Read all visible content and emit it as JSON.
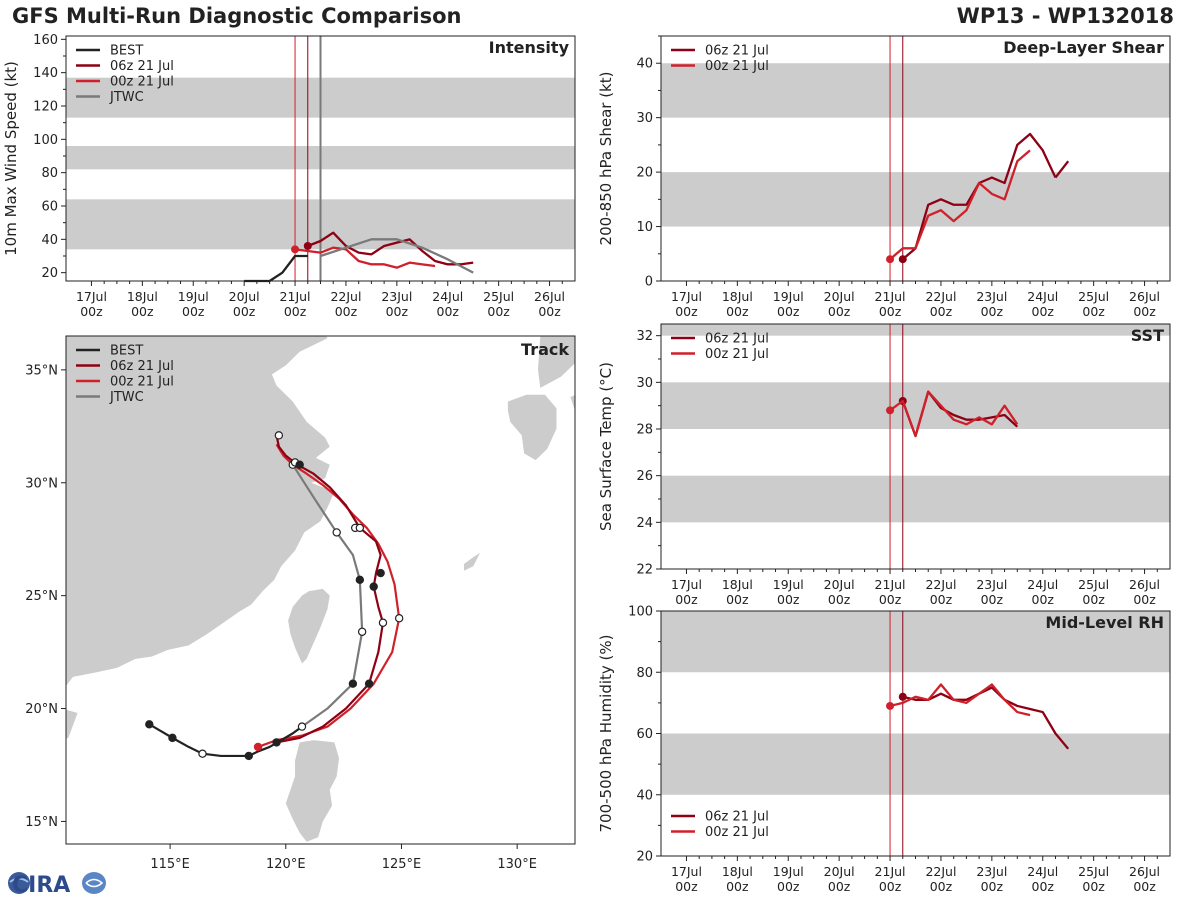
{
  "header": {
    "left_title": "GFS Multi-Run Diagnostic Comparison",
    "right_title": "WP13 - WP132018"
  },
  "logo_text": "CIRA",
  "colors": {
    "best": "#222222",
    "run06": "#8e0014",
    "run00": "#d0202a",
    "jtwc": "#7a7a7a",
    "band": "#cccccc",
    "land": "#cccccc"
  },
  "time_ticks": [
    "17Jul 00z",
    "18Jul 00z",
    "19Jul 00z",
    "20Jul 00z",
    "21Jul 00z",
    "22Jul 00z",
    "23Jul 00z",
    "24Jul 00z",
    "25Jul 00z",
    "26Jul 00z"
  ],
  "chart_data": [
    {
      "id": "intensity",
      "type": "line",
      "title": "Intensity",
      "ylabel": "10m Max Wind Speed (kt)",
      "xlim": [
        -0.5,
        9.5
      ],
      "ylim": [
        15,
        162
      ],
      "yticks": [
        20,
        40,
        60,
        80,
        100,
        120,
        140,
        160
      ],
      "bands": [
        [
          34,
          64
        ],
        [
          82,
          96
        ],
        [
          113,
          137
        ]
      ],
      "vlines": [
        4.0,
        4.25,
        4.5
      ],
      "legend": [
        "BEST",
        "06z 21 Jul",
        "00z 21 Jul",
        "JTWC"
      ],
      "series": [
        {
          "name": "BEST",
          "color_key": "best",
          "x": [
            3.0,
            3.25,
            3.5,
            3.75,
            4.0,
            4.25
          ],
          "y": [
            15,
            15,
            15,
            20,
            30,
            30
          ],
          "markers": []
        },
        {
          "name": "06z 21 Jul",
          "color_key": "run06",
          "x": [
            4.25,
            4.5,
            4.75,
            5.0,
            5.25,
            5.5,
            5.75,
            6.0,
            6.25,
            6.5,
            6.75,
            7.0,
            7.25,
            7.5
          ],
          "y": [
            36,
            39,
            44,
            36,
            32,
            31,
            36,
            38,
            40,
            33,
            27,
            25,
            25,
            26
          ],
          "markers": [
            4.25
          ]
        },
        {
          "name": "00z 21 Jul",
          "color_key": "run00",
          "x": [
            4.0,
            4.25,
            4.5,
            4.75,
            5.0,
            5.25,
            5.5,
            5.75,
            6.0,
            6.25,
            6.5,
            6.75
          ],
          "y": [
            34,
            33,
            32,
            35,
            34,
            27,
            25,
            25,
            23,
            26,
            25,
            24
          ],
          "markers": [
            4.0
          ]
        },
        {
          "name": "JTWC",
          "color_key": "jtwc",
          "x": [
            4.5,
            5.0,
            5.5,
            6.0,
            6.5,
            7.0,
            7.5
          ],
          "y": [
            30,
            35,
            40,
            40,
            35,
            28,
            20
          ],
          "markers": []
        }
      ]
    },
    {
      "id": "shear",
      "type": "line",
      "title": "Deep-Layer Shear",
      "ylabel": "200-850 hPa Shear (kt)",
      "xlim": [
        -0.5,
        9.5
      ],
      "ylim": [
        0,
        45
      ],
      "yticks": [
        0,
        10,
        20,
        30,
        40
      ],
      "bands": [
        [
          10,
          20
        ],
        [
          30,
          40
        ]
      ],
      "vlines": [
        4.0,
        4.25
      ],
      "legend": [
        "06z 21 Jul",
        "00z 21 Jul"
      ],
      "series": [
        {
          "name": "06z 21 Jul",
          "color_key": "run06",
          "x": [
            4.25,
            4.5,
            4.75,
            5.0,
            5.25,
            5.5,
            5.75,
            6.0,
            6.25,
            6.5,
            6.75,
            7.0,
            7.25
          ],
          "y": [
            4,
            6,
            14,
            15,
            14,
            14,
            18,
            19,
            18,
            25,
            27,
            24,
            19
          ],
          "markers": [
            4.25
          ]
        },
        {
          "name": "00z 21 Jul",
          "color_key": "run00",
          "x": [
            4.0,
            4.25,
            4.5,
            4.75,
            5.0,
            5.25,
            5.5,
            5.75,
            6.0,
            6.25,
            6.5,
            6.75
          ],
          "y": [
            4,
            6,
            6,
            12,
            13,
            11,
            13,
            18,
            16,
            15,
            22,
            24
          ],
          "markers": [
            4.0
          ]
        },
        {
          "name": "06z tail",
          "color_key": "run06",
          "x": [
            7.25,
            7.5
          ],
          "y": [
            19,
            22
          ],
          "markers": []
        }
      ]
    },
    {
      "id": "sst",
      "type": "line",
      "title": "SST",
      "ylabel": "Sea Surface Temp (°C)",
      "xlim": [
        -0.5,
        9.5
      ],
      "ylim": [
        22,
        32.5
      ],
      "yticks": [
        22,
        24,
        26,
        28,
        30,
        32
      ],
      "bands": [
        [
          24,
          26
        ],
        [
          28,
          30
        ],
        [
          32,
          32.5
        ]
      ],
      "vlines": [
        4.0,
        4.25
      ],
      "legend": [
        "06z 21 Jul",
        "00z 21 Jul"
      ],
      "series": [
        {
          "name": "06z 21 Jul",
          "color_key": "run06",
          "x": [
            4.25,
            4.5,
            4.75,
            5.0,
            5.25,
            5.5,
            5.75,
            6.0,
            6.25,
            6.5
          ],
          "y": [
            29.2,
            27.7,
            29.6,
            28.9,
            28.6,
            28.4,
            28.4,
            28.5,
            28.6,
            28.1
          ],
          "markers": [
            4.25
          ]
        },
        {
          "name": "00z 21 Jul",
          "color_key": "run00",
          "x": [
            4.0,
            4.25,
            4.5,
            4.75,
            5.0,
            5.25,
            5.5,
            5.75,
            6.0,
            6.25,
            6.5
          ],
          "y": [
            28.8,
            29.2,
            27.7,
            29.6,
            29.0,
            28.4,
            28.2,
            28.5,
            28.2,
            29.0,
            28.2
          ],
          "markers": [
            4.0
          ]
        }
      ]
    },
    {
      "id": "rh",
      "type": "line",
      "title": "Mid-Level RH",
      "ylabel": "700-500 hPa Humidity (%)",
      "xlim": [
        -0.5,
        9.5
      ],
      "ylim": [
        20,
        100
      ],
      "yticks": [
        20,
        40,
        60,
        80,
        100
      ],
      "bands": [
        [
          40,
          60
        ],
        [
          80,
          100
        ]
      ],
      "vlines": [
        4.0,
        4.25
      ],
      "legend": [
        "06z 21 Jul",
        "00z 21 Jul"
      ],
      "series": [
        {
          "name": "06z 21 Jul",
          "color_key": "run06",
          "x": [
            4.25,
            4.5,
            4.75,
            5.0,
            5.25,
            5.5,
            5.75,
            6.0,
            6.25,
            6.5,
            6.75,
            7.0,
            7.25,
            7.5
          ],
          "y": [
            72,
            71,
            71,
            73,
            71,
            71,
            73,
            75,
            71,
            69,
            68,
            67,
            60,
            55
          ],
          "markers": [
            4.25
          ]
        },
        {
          "name": "00z 21 Jul",
          "color_key": "run00",
          "x": [
            4.0,
            4.25,
            4.5,
            4.75,
            5.0,
            5.25,
            5.5,
            5.75,
            6.0,
            6.25,
            6.5,
            6.75
          ],
          "y": [
            69,
            70,
            72,
            71,
            76,
            71,
            70,
            73,
            76,
            71,
            67,
            66
          ],
          "markers": [
            4.0
          ]
        }
      ]
    },
    {
      "id": "track",
      "type": "scatter",
      "title": "Track",
      "xlim": [
        110.5,
        132.5
      ],
      "ylim": [
        14,
        36.5
      ],
      "xticks": [
        115,
        120,
        125,
        130
      ],
      "yticks": [
        15,
        20,
        25,
        30,
        35
      ],
      "xticklabels": [
        "115°E",
        "120°E",
        "125°E",
        "130°E"
      ],
      "yticklabels": [
        "15°N",
        "20°N",
        "25°N",
        "30°N",
        "35°N"
      ],
      "legend": [
        "BEST",
        "06z 21 Jul",
        "00z 21 Jul",
        "JTWC"
      ],
      "series": [
        {
          "name": "BEST",
          "color_key": "best",
          "lon": [
            114.1,
            114.6,
            115.1,
            115.8,
            116.4,
            117.2,
            117.9,
            118.4,
            118.8,
            119.3,
            119.8,
            120.3,
            120.7
          ],
          "lat": [
            19.3,
            19.0,
            18.7,
            18.3,
            18.0,
            17.9,
            17.9,
            17.9,
            18.1,
            18.3,
            18.6,
            18.9,
            19.2
          ],
          "dots": [
            [
              114.1,
              19.3,
              "f"
            ],
            [
              115.1,
              18.7,
              "f"
            ],
            [
              116.4,
              18.0,
              "o"
            ],
            [
              118.4,
              17.9,
              "f"
            ],
            [
              120.7,
              19.2,
              "o"
            ]
          ]
        },
        {
          "name": "06z 21 Jul",
          "color_key": "run06",
          "lon": [
            119.6,
            120.6,
            121.6,
            122.6,
            123.6,
            124.0,
            124.2,
            124.0,
            123.8,
            123.9,
            124.1,
            123.9,
            123.2,
            122.6,
            121.9,
            121.2,
            120.5,
            120.0,
            119.7,
            119.6
          ],
          "lat": [
            18.5,
            18.7,
            19.2,
            20.0,
            21.1,
            22.5,
            23.8,
            24.5,
            25.4,
            26.0,
            26.8,
            27.4,
            28.0,
            29.0,
            29.8,
            30.4,
            30.8,
            31.2,
            31.6,
            32.1
          ],
          "dots": [
            [
              119.6,
              18.5,
              "f"
            ],
            [
              123.6,
              21.1,
              "f"
            ],
            [
              124.2,
              23.8,
              "o"
            ],
            [
              123.8,
              25.4,
              "f"
            ],
            [
              124.1,
              26.0,
              "f"
            ],
            [
              123.2,
              28.0,
              "o"
            ],
            [
              120.6,
              30.8,
              "f"
            ],
            [
              119.7,
              32.1,
              "o"
            ]
          ]
        },
        {
          "name": "00z 21 Jul",
          "color_key": "run00",
          "lon": [
            118.8,
            119.6,
            120.7,
            121.8,
            122.8,
            123.8,
            124.6,
            124.9,
            124.7,
            124.4,
            124.0,
            123.5,
            122.9,
            122.3,
            121.6,
            120.9,
            120.3,
            119.9,
            119.6
          ],
          "lat": [
            18.3,
            18.6,
            18.8,
            19.2,
            20.0,
            21.1,
            22.5,
            24.0,
            25.5,
            26.5,
            27.3,
            28.0,
            28.6,
            29.3,
            29.9,
            30.4,
            30.8,
            31.2,
            31.7
          ],
          "dots": [
            [
              118.8,
              18.3,
              "f"
            ],
            [
              124.9,
              24.0,
              "o"
            ],
            [
              123.0,
              28.0,
              "o"
            ],
            [
              120.4,
              30.9,
              "o"
            ]
          ]
        },
        {
          "name": "JTWC",
          "color_key": "jtwc",
          "lon": [
            120.7,
            121.8,
            122.9,
            123.3,
            123.2,
            122.9,
            122.2,
            121.3,
            120.3
          ],
          "lat": [
            19.2,
            20.0,
            21.1,
            23.4,
            25.7,
            26.8,
            27.8,
            29.2,
            30.8
          ],
          "dots": [
            [
              122.9,
              21.1,
              "f"
            ],
            [
              123.3,
              23.4,
              "o"
            ],
            [
              123.2,
              25.7,
              "f"
            ],
            [
              122.2,
              27.8,
              "o"
            ],
            [
              120.3,
              30.8,
              "o"
            ]
          ]
        }
      ]
    }
  ]
}
